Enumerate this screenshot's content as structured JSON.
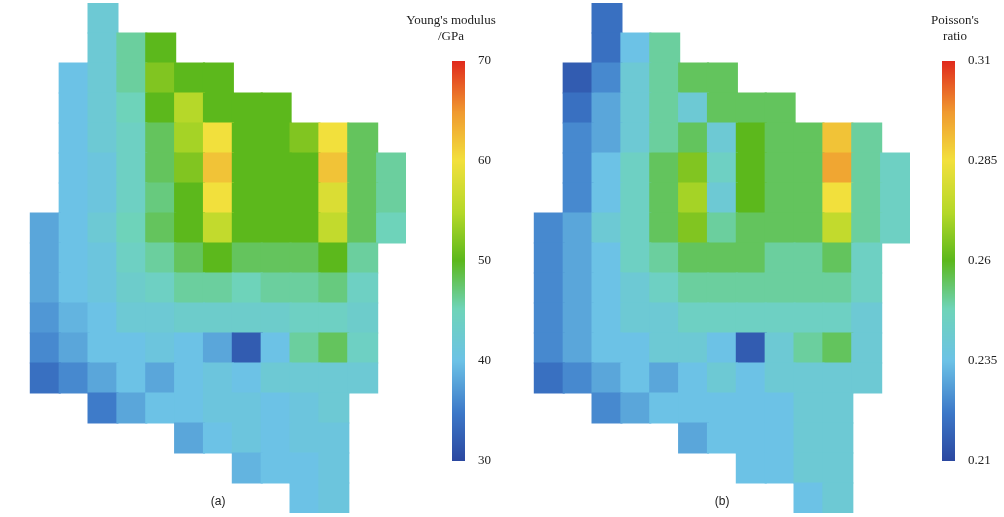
{
  "chart_data": [
    {
      "type": "heatmap",
      "title": "(a)",
      "tick_labels": false,
      "colorbar": {
        "title": [
          "Young's modulus",
          "/GPa"
        ],
        "range": [
          30,
          70
        ],
        "ticks": [
          30,
          40,
          50,
          60,
          70
        ]
      },
      "cells": [
        [
          null,
          null,
          null,
          42,
          null,
          null,
          null,
          null,
          null,
          null,
          null,
          null,
          null,
          null
        ],
        [
          null,
          null,
          null,
          42,
          46,
          50,
          null,
          null,
          null,
          null,
          null,
          null,
          null,
          null
        ],
        [
          null,
          null,
          40,
          42,
          46,
          52,
          50,
          50,
          null,
          null,
          null,
          null,
          null,
          null
        ],
        [
          null,
          null,
          40,
          42,
          45,
          50,
          55,
          50,
          50,
          50,
          null,
          null,
          null,
          null
        ],
        [
          null,
          null,
          40,
          42,
          44,
          48,
          54,
          60,
          50,
          50,
          52,
          60,
          48,
          null
        ],
        [
          null,
          null,
          40,
          41,
          44,
          48,
          52,
          62,
          50,
          50,
          50,
          62,
          48,
          46
        ],
        [
          null,
          null,
          40,
          41,
          44,
          47,
          50,
          60,
          50,
          50,
          50,
          58,
          48,
          46
        ],
        [
          null,
          38,
          40,
          42,
          45,
          48,
          50,
          56,
          50,
          50,
          50,
          56,
          48,
          45
        ],
        [
          null,
          38,
          40,
          41,
          44,
          46,
          48,
          50,
          48,
          48,
          48,
          50,
          46,
          null
        ],
        [
          null,
          38,
          40,
          41,
          43,
          44,
          46,
          46,
          45,
          46,
          46,
          47,
          44,
          null
        ],
        [
          null,
          37,
          39,
          40,
          42,
          42,
          43,
          43,
          43,
          43,
          44,
          44,
          43,
          null
        ],
        [
          null,
          36,
          38,
          40,
          40,
          41,
          40,
          38,
          32,
          40,
          46,
          48,
          44,
          null
        ],
        [
          null,
          34,
          36,
          38,
          40,
          38,
          40,
          41,
          40,
          42,
          42,
          42,
          42,
          null
        ],
        [
          null,
          null,
          null,
          35,
          38,
          40,
          40,
          41,
          41,
          40,
          41,
          42,
          null,
          null
        ],
        [
          null,
          null,
          null,
          null,
          null,
          null,
          38,
          40,
          41,
          40,
          41,
          41,
          null,
          null
        ],
        [
          null,
          null,
          null,
          null,
          null,
          null,
          null,
          null,
          39,
          40,
          40,
          41,
          null,
          null
        ],
        [
          null,
          null,
          null,
          null,
          null,
          null,
          null,
          null,
          null,
          null,
          40,
          41,
          null,
          null
        ]
      ]
    },
    {
      "type": "heatmap",
      "title": "(b)",
      "tick_labels": false,
      "colorbar": {
        "title": [
          "Poisson's",
          "ratio"
        ],
        "range": [
          0.21,
          0.31
        ],
        "ticks": [
          0.21,
          0.235,
          0.26,
          0.285,
          0.31
        ]
      },
      "cells": [
        [
          null,
          null,
          null,
          0.22,
          null,
          null,
          null,
          null,
          null,
          null,
          null,
          null,
          null,
          null
        ],
        [
          null,
          null,
          null,
          0.22,
          0.235,
          0.25,
          null,
          null,
          null,
          null,
          null,
          null,
          null,
          null
        ],
        [
          null,
          null,
          0.215,
          0.225,
          0.24,
          0.25,
          0.255,
          0.255,
          null,
          null,
          null,
          null,
          null,
          null
        ],
        [
          null,
          null,
          0.22,
          0.23,
          0.24,
          0.25,
          0.24,
          0.255,
          0.255,
          0.255,
          null,
          null,
          null,
          null
        ],
        [
          null,
          null,
          0.225,
          0.23,
          0.24,
          0.25,
          0.255,
          0.24,
          0.26,
          0.255,
          0.255,
          0.29,
          0.25,
          null
        ],
        [
          null,
          null,
          0.225,
          0.235,
          0.245,
          0.255,
          0.265,
          0.245,
          0.26,
          0.255,
          0.255,
          0.295,
          0.25,
          0.245
        ],
        [
          null,
          null,
          0.225,
          0.235,
          0.245,
          0.255,
          0.27,
          0.24,
          0.26,
          0.255,
          0.255,
          0.285,
          0.25,
          0.245
        ],
        [
          null,
          0.225,
          0.23,
          0.24,
          0.245,
          0.255,
          0.265,
          0.25,
          0.255,
          0.255,
          0.255,
          0.275,
          0.25,
          0.245
        ],
        [
          null,
          0.225,
          0.23,
          0.235,
          0.245,
          0.25,
          0.255,
          0.255,
          0.255,
          0.25,
          0.25,
          0.255,
          0.245,
          null
        ],
        [
          null,
          0.225,
          0.23,
          0.235,
          0.24,
          0.245,
          0.25,
          0.25,
          0.25,
          0.25,
          0.25,
          0.25,
          0.245,
          null
        ],
        [
          null,
          0.225,
          0.23,
          0.235,
          0.24,
          0.24,
          0.245,
          0.245,
          0.245,
          0.245,
          0.245,
          0.245,
          0.24,
          null
        ],
        [
          null,
          0.225,
          0.23,
          0.235,
          0.235,
          0.24,
          0.24,
          0.235,
          0.215,
          0.24,
          0.25,
          0.255,
          0.24,
          null
        ],
        [
          null,
          0.22,
          0.225,
          0.23,
          0.235,
          0.23,
          0.235,
          0.24,
          0.235,
          0.24,
          0.24,
          0.24,
          0.24,
          null
        ],
        [
          null,
          null,
          null,
          0.225,
          0.23,
          0.235,
          0.235,
          0.235,
          0.235,
          0.235,
          0.24,
          0.24,
          null,
          null
        ],
        [
          null,
          null,
          null,
          null,
          null,
          null,
          0.23,
          0.235,
          0.235,
          0.235,
          0.24,
          0.24,
          null,
          null
        ],
        [
          null,
          null,
          null,
          null,
          null,
          null,
          null,
          null,
          0.235,
          0.235,
          0.24,
          0.24,
          null,
          null
        ],
        [
          null,
          null,
          null,
          null,
          null,
          null,
          null,
          null,
          null,
          null,
          0.235,
          0.24,
          null,
          null
        ]
      ]
    }
  ]
}
